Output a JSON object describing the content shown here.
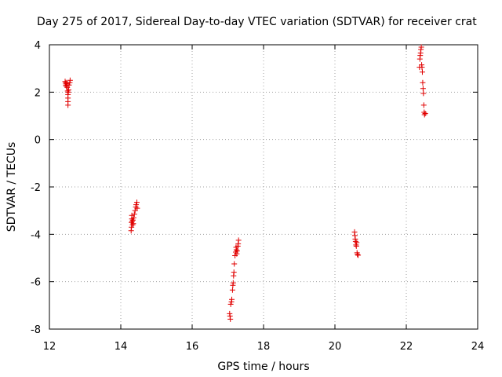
{
  "chart_data": {
    "type": "scatter",
    "title": "Day 275 of 2017, Sidereal Day-to-day VTEC variation (SDTVAR) for receiver crat",
    "xlabel": "GPS time / hours",
    "ylabel": "SDTVAR / TECUs",
    "xlim": [
      12,
      24
    ],
    "ylim": [
      -8,
      4
    ],
    "xticks": [
      12,
      14,
      16,
      18,
      20,
      22,
      24
    ],
    "yticks": [
      -8,
      -6,
      -4,
      -2,
      0,
      2,
      4
    ],
    "grid": true,
    "marker": "+",
    "color": "#e00000",
    "series": [
      {
        "name": "SDTVAR",
        "points": [
          [
            12.44,
            2.45
          ],
          [
            12.45,
            2.38
          ],
          [
            12.46,
            2.3
          ],
          [
            12.47,
            2.25
          ],
          [
            12.48,
            2.4
          ],
          [
            12.49,
            2.35
          ],
          [
            12.5,
            2.2
          ],
          [
            12.51,
            2.05
          ],
          [
            12.52,
            1.9
          ],
          [
            12.52,
            1.75
          ],
          [
            12.52,
            1.6
          ],
          [
            12.52,
            1.45
          ],
          [
            12.53,
            2.0
          ],
          [
            12.54,
            2.1
          ],
          [
            12.55,
            2.3
          ],
          [
            12.57,
            2.4
          ],
          [
            12.58,
            2.5
          ],
          [
            14.29,
            -3.85
          ],
          [
            14.3,
            -3.7
          ],
          [
            14.3,
            -3.5
          ],
          [
            14.31,
            -3.35
          ],
          [
            14.31,
            -3.2
          ],
          [
            14.32,
            -3.45
          ],
          [
            14.33,
            -3.6
          ],
          [
            14.34,
            -3.4
          ],
          [
            14.35,
            -3.55
          ],
          [
            14.36,
            -3.3
          ],
          [
            14.38,
            -3.15
          ],
          [
            14.4,
            -3.0
          ],
          [
            14.42,
            -2.85
          ],
          [
            14.43,
            -2.75
          ],
          [
            14.45,
            -2.65
          ],
          [
            14.46,
            -2.9
          ],
          [
            17.05,
            -7.35
          ],
          [
            17.06,
            -7.45
          ],
          [
            17.07,
            -7.58
          ],
          [
            17.08,
            -6.95
          ],
          [
            17.1,
            -6.85
          ],
          [
            17.11,
            -6.75
          ],
          [
            17.13,
            -6.35
          ],
          [
            17.14,
            -6.15
          ],
          [
            17.15,
            -6.05
          ],
          [
            17.16,
            -5.75
          ],
          [
            17.17,
            -5.6
          ],
          [
            17.18,
            -5.25
          ],
          [
            17.2,
            -4.9
          ],
          [
            17.22,
            -4.75
          ],
          [
            17.23,
            -4.55
          ],
          [
            17.24,
            -4.65
          ],
          [
            17.25,
            -4.82
          ],
          [
            17.26,
            -4.7
          ],
          [
            17.28,
            -4.5
          ],
          [
            17.29,
            -4.4
          ],
          [
            17.3,
            -4.25
          ],
          [
            20.55,
            -3.9
          ],
          [
            20.56,
            -4.05
          ],
          [
            20.57,
            -4.2
          ],
          [
            20.58,
            -4.3
          ],
          [
            20.59,
            -4.45
          ],
          [
            20.6,
            -4.5
          ],
          [
            20.61,
            -4.35
          ],
          [
            20.62,
            -4.78
          ],
          [
            20.63,
            -4.85
          ],
          [
            20.65,
            -4.88
          ],
          [
            22.37,
            3.05
          ],
          [
            22.38,
            3.4
          ],
          [
            22.39,
            3.55
          ],
          [
            22.4,
            3.65
          ],
          [
            22.41,
            3.8
          ],
          [
            22.42,
            3.9
          ],
          [
            22.43,
            3.15
          ],
          [
            22.44,
            3.05
          ],
          [
            22.45,
            2.85
          ],
          [
            22.46,
            2.4
          ],
          [
            22.47,
            2.15
          ],
          [
            22.48,
            1.95
          ],
          [
            22.49,
            1.45
          ],
          [
            22.5,
            1.15
          ],
          [
            22.51,
            1.05
          ],
          [
            22.53,
            1.1
          ]
        ]
      }
    ]
  }
}
